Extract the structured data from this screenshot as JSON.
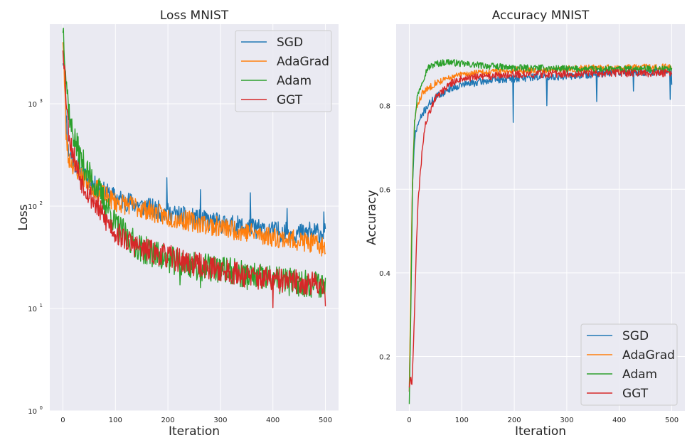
{
  "chart_data": [
    {
      "type": "line",
      "title": "Loss MNIST",
      "xlabel": "Iteration",
      "ylabel": "Loss",
      "yscale": "log",
      "xlim": [
        -25,
        525
      ],
      "ylim": [
        1,
        6000
      ],
      "x_ticks": [
        0,
        100,
        200,
        300,
        400,
        500
      ],
      "y_ticks": [
        {
          "value": 1,
          "base": "10",
          "exp": "0"
        },
        {
          "value": 10,
          "base": "10",
          "exp": "1"
        },
        {
          "value": 100,
          "base": "10",
          "exp": "2"
        },
        {
          "value": 1000,
          "base": "10",
          "exp": "3"
        }
      ],
      "grid": true,
      "legend_position": "top-right",
      "series": [
        {
          "name": "SGD",
          "color": "#1f77b4",
          "anchors": [
            [
              0,
              2800
            ],
            [
              3,
              2300
            ],
            [
              6,
              800
            ],
            [
              10,
              350
            ],
            [
              20,
              280
            ],
            [
              35,
              210
            ],
            [
              50,
              170
            ],
            [
              75,
              140
            ],
            [
              100,
              120
            ],
            [
              150,
              100
            ],
            [
              200,
              85
            ],
            [
              250,
              75
            ],
            [
              300,
              68
            ],
            [
              350,
              62
            ],
            [
              400,
              57
            ],
            [
              450,
              54
            ],
            [
              500,
              55
            ]
          ],
          "noise": 0.1,
          "seed": 11,
          "spikes": [
            [
              198,
              190
            ],
            [
              262,
              145
            ],
            [
              357,
              135
            ],
            [
              400,
              50
            ],
            [
              427,
              95
            ],
            [
              470,
              70
            ],
            [
              497,
              88
            ]
          ],
          "last": 60
        },
        {
          "name": "AdaGrad",
          "color": "#ff7f0e",
          "anchors": [
            [
              0,
              4500
            ],
            [
              3,
              1500
            ],
            [
              6,
              500
            ],
            [
              10,
              300
            ],
            [
              20,
              250
            ],
            [
              35,
              200
            ],
            [
              50,
              165
            ],
            [
              75,
              130
            ],
            [
              100,
              110
            ],
            [
              150,
              95
            ],
            [
              200,
              78
            ],
            [
              250,
              70
            ],
            [
              300,
              62
            ],
            [
              350,
              56
            ],
            [
              400,
              50
            ],
            [
              450,
              46
            ],
            [
              500,
              40
            ]
          ],
          "noise": 0.1,
          "seed": 23,
          "spikes": [
            [
              495,
              35
            ]
          ],
          "last": 35
        },
        {
          "name": "Adam",
          "color": "#2ca02c",
          "anchors": [
            [
              0,
              5800
            ],
            [
              3,
              3500
            ],
            [
              6,
              1800
            ],
            [
              10,
              1000
            ],
            [
              15,
              600
            ],
            [
              25,
              400
            ],
            [
              35,
              280
            ],
            [
              50,
              200
            ],
            [
              75,
              120
            ],
            [
              100,
              65
            ],
            [
              125,
              48
            ],
            [
              150,
              38
            ],
            [
              200,
              30
            ],
            [
              250,
              26
            ],
            [
              300,
              24
            ],
            [
              350,
              21
            ],
            [
              400,
              19
            ],
            [
              450,
              18
            ],
            [
              500,
              17
            ]
          ],
          "noise": 0.14,
          "seed": 37,
          "spikes": [
            [
              223,
              17
            ],
            [
              262,
              16
            ]
          ],
          "last": 20
        },
        {
          "name": "GGT",
          "color": "#d62728",
          "anchors": [
            [
              0,
              3800
            ],
            [
              3,
              2200
            ],
            [
              6,
              1200
            ],
            [
              10,
              600
            ],
            [
              15,
              400
            ],
            [
              25,
              250
            ],
            [
              35,
              180
            ],
            [
              50,
              130
            ],
            [
              75,
              80
            ],
            [
              100,
              55
            ],
            [
              125,
              45
            ],
            [
              150,
              38
            ],
            [
              200,
              32
            ],
            [
              250,
              27
            ],
            [
              300,
              24
            ],
            [
              350,
              21
            ],
            [
              400,
              19
            ],
            [
              450,
              18
            ],
            [
              500,
              17
            ]
          ],
          "noise": 0.12,
          "seed": 53,
          "spikes": [
            [
              400,
              10.2
            ]
          ],
          "last": 10.5
        }
      ]
    },
    {
      "type": "line",
      "title": "Accuracy MNIST",
      "xlabel": "Iteration",
      "ylabel": "Accuracy",
      "xlim": [
        -25,
        525
      ],
      "ylim": [
        0.07,
        0.995
      ],
      "x_ticks": [
        0,
        100,
        200,
        300,
        400,
        500
      ],
      "y_ticks": [
        0.2,
        0.4,
        0.6,
        0.8
      ],
      "grid": true,
      "legend_position": "bottom-right",
      "series": [
        {
          "name": "SGD",
          "color": "#1f77b4",
          "anchors": [
            [
              0,
              0.12
            ],
            [
              3,
              0.35
            ],
            [
              6,
              0.6
            ],
            [
              10,
              0.72
            ],
            [
              15,
              0.75
            ],
            [
              25,
              0.78
            ],
            [
              35,
              0.8
            ],
            [
              50,
              0.82
            ],
            [
              75,
              0.84
            ],
            [
              100,
              0.85
            ],
            [
              150,
              0.86
            ],
            [
              200,
              0.865
            ],
            [
              250,
              0.87
            ],
            [
              300,
              0.87
            ],
            [
              350,
              0.875
            ],
            [
              400,
              0.88
            ],
            [
              450,
              0.88
            ],
            [
              500,
              0.88
            ]
          ],
          "noise": 0.009,
          "seed": 71,
          "spikes": [
            [
              198,
              0.76
            ],
            [
              262,
              0.8
            ],
            [
              357,
              0.81
            ],
            [
              427,
              0.835
            ],
            [
              497,
              0.815
            ]
          ],
          "last": 0.85
        },
        {
          "name": "AdaGrad",
          "color": "#ff7f0e",
          "anchors": [
            [
              0,
              0.12
            ],
            [
              3,
              0.38
            ],
            [
              6,
              0.62
            ],
            [
              10,
              0.76
            ],
            [
              15,
              0.8
            ],
            [
              25,
              0.83
            ],
            [
              35,
              0.84
            ],
            [
              50,
              0.855
            ],
            [
              75,
              0.865
            ],
            [
              100,
              0.875
            ],
            [
              150,
              0.88
            ],
            [
              200,
              0.885
            ],
            [
              250,
              0.885
            ],
            [
              300,
              0.888
            ],
            [
              350,
              0.89
            ],
            [
              400,
              0.89
            ],
            [
              450,
              0.892
            ],
            [
              500,
              0.892
            ]
          ],
          "noise": 0.008,
          "seed": 83,
          "spikes": [],
          "last": 0.89
        },
        {
          "name": "Adam",
          "color": "#2ca02c",
          "anchors": [
            [
              0,
              0.09
            ],
            [
              3,
              0.32
            ],
            [
              6,
              0.6
            ],
            [
              10,
              0.76
            ],
            [
              15,
              0.82
            ],
            [
              25,
              0.86
            ],
            [
              35,
              0.89
            ],
            [
              50,
              0.9
            ],
            [
              75,
              0.905
            ],
            [
              100,
              0.9
            ],
            [
              150,
              0.895
            ],
            [
              200,
              0.89
            ],
            [
              250,
              0.89
            ],
            [
              300,
              0.888
            ],
            [
              350,
              0.887
            ],
            [
              400,
              0.887
            ],
            [
              450,
              0.888
            ],
            [
              500,
              0.888
            ]
          ],
          "noise": 0.008,
          "seed": 97,
          "spikes": [],
          "last": 0.89
        },
        {
          "name": "GGT",
          "color": "#d62728",
          "anchors": [
            [
              0,
              0.13
            ],
            [
              2,
              0.15
            ],
            [
              5,
              0.14
            ],
            [
              8,
              0.22
            ],
            [
              12,
              0.4
            ],
            [
              16,
              0.55
            ],
            [
              20,
              0.62
            ],
            [
              25,
              0.7
            ],
            [
              30,
              0.75
            ],
            [
              40,
              0.79
            ],
            [
              50,
              0.82
            ],
            [
              75,
              0.85
            ],
            [
              100,
              0.865
            ],
            [
              150,
              0.87
            ],
            [
              200,
              0.875
            ],
            [
              250,
              0.875
            ],
            [
              300,
              0.876
            ],
            [
              350,
              0.877
            ],
            [
              400,
              0.878
            ],
            [
              450,
              0.878
            ],
            [
              500,
              0.878
            ]
          ],
          "noise": 0.009,
          "seed": 109,
          "spikes": [],
          "last": 0.875
        }
      ]
    }
  ]
}
